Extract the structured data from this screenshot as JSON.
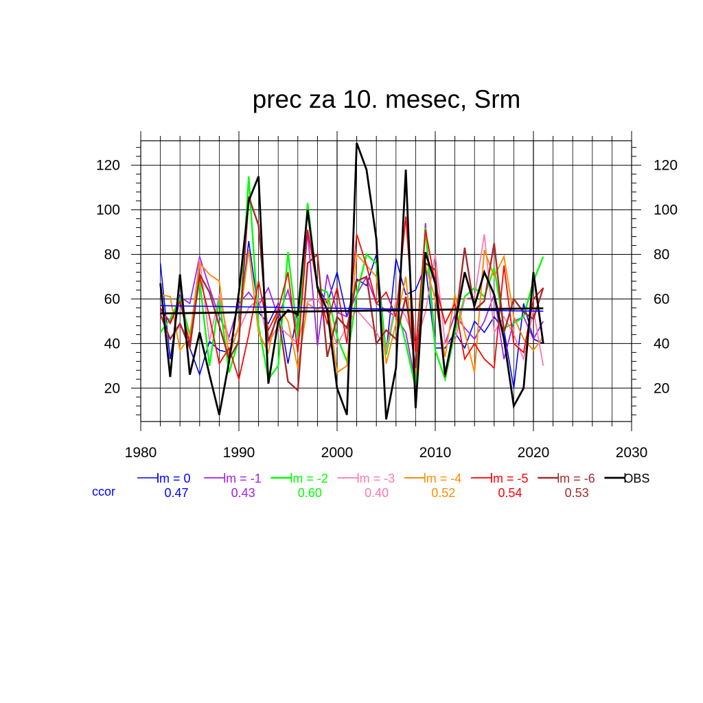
{
  "chart_data": {
    "type": "line",
    "title": "prec za 10. mesec, Srm",
    "xlabel": "",
    "ylabel": "",
    "xlim": [
      1980,
      2030
    ],
    "ylim": [
      5,
      131
    ],
    "grid": true,
    "x_ticks": [
      "1980",
      "1990",
      "2000",
      "2010",
      "2020",
      "2030"
    ],
    "y_ticks": [
      "20",
      "40",
      "60",
      "80",
      "100",
      "120"
    ],
    "legend_position": "bottom",
    "ccor_label": "ccor",
    "ccor_color": "#0000ff",
    "x": [
      1982,
      1983,
      1984,
      1985,
      1986,
      1987,
      1988,
      1989,
      1990,
      1991,
      1992,
      1993,
      1994,
      1995,
      1996,
      1997,
      1998,
      1999,
      2000,
      2001,
      2002,
      2003,
      2004,
      2005,
      2006,
      2007,
      2008,
      2009,
      2010,
      2011,
      2012,
      2013,
      2014,
      2015,
      2016,
      2017,
      2018,
      2019,
      2020,
      2021
    ],
    "series": [
      {
        "name": "lm = 0",
        "ccor": "0.47",
        "color": "#0000ff",
        "width": 1.6,
        "values": [
          76,
          33,
          62,
          38,
          26,
          41,
          37,
          36,
          47,
          86,
          54,
          49,
          58,
          31,
          55,
          91,
          66,
          58,
          72,
          52,
          69,
          66,
          80,
          36,
          78,
          62,
          64,
          75,
          38,
          38,
          45,
          38,
          50,
          45,
          52,
          46,
          20,
          58,
          42,
          40
        ],
        "trend": [
          57,
          54.5
        ]
      },
      {
        "name": "lm = -1",
        "ccor": "0.43",
        "color": "#a020f0",
        "width": 1.8,
        "values": [
          55,
          50,
          61,
          58,
          79,
          65,
          52,
          43,
          58,
          63,
          57,
          65,
          52,
          64,
          44,
          90,
          39,
          71,
          54,
          52,
          62,
          70,
          58,
          55,
          52,
          45,
          22,
          94,
          40,
          40,
          53,
          47,
          42,
          50,
          62,
          33,
          50,
          52,
          42,
          50
        ]
      },
      {
        "name": "lm = -2",
        "ccor": "0.60",
        "color": "#00ff00",
        "width": 2.4,
        "values": [
          45,
          51,
          60,
          44,
          68,
          30,
          60,
          27,
          42,
          115,
          48,
          24,
          30,
          81,
          43,
          103,
          65,
          63,
          43,
          32,
          62,
          80,
          76,
          35,
          58,
          40,
          20,
          92,
          37,
          24,
          45,
          61,
          65,
          61,
          74,
          47,
          49,
          52,
          68,
          79
        ]
      },
      {
        "name": "lm = -3",
        "ccor": "0.40",
        "color": "#ff77b0",
        "width": 1.8,
        "values": [
          53,
          42,
          48,
          42,
          78,
          41,
          62,
          41,
          46,
          56,
          60,
          40,
          48,
          44,
          40,
          59,
          60,
          53,
          39,
          48,
          55,
          50,
          45,
          37,
          59,
          52,
          40,
          54,
          80,
          40,
          41,
          60,
          61,
          89,
          45,
          52,
          44,
          33,
          55,
          30
        ]
      },
      {
        "name": "lm = -4",
        "ccor": "0.52",
        "color": "#ff8c00",
        "width": 2.0,
        "values": [
          62,
          61,
          37,
          43,
          76,
          71,
          68,
          34,
          48,
          82,
          45,
          36,
          57,
          50,
          29,
          58,
          55,
          60,
          27,
          30,
          80,
          75,
          70,
          31,
          49,
          70,
          26,
          75,
          60,
          34,
          62,
          45,
          27,
          82,
          70,
          79,
          52,
          42,
          37,
          43
        ]
      },
      {
        "name": "lm = -5",
        "ccor": "0.54",
        "color": "#ff0000",
        "width": 1.8,
        "values": [
          56,
          49,
          59,
          40,
          70,
          52,
          31,
          38,
          24,
          44,
          68,
          46,
          55,
          72,
          36,
          91,
          65,
          49,
          65,
          40,
          89,
          75,
          58,
          63,
          52,
          97,
          36,
          91,
          67,
          49,
          58,
          33,
          40,
          33,
          29,
          75,
          40,
          36,
          60,
          65
        ]
      },
      {
        "name": "lm = -6",
        "ccor": "0.53",
        "color": "#a52a2a",
        "width": 2.4,
        "values": [
          53,
          42,
          49,
          38,
          71,
          63,
          48,
          33,
          41,
          106,
          93,
          41,
          53,
          23,
          19,
          76,
          80,
          34,
          52,
          47,
          68,
          70,
          40,
          46,
          42,
          61,
          29,
          76,
          73,
          25,
          48,
          83,
          55,
          59,
          85,
          45,
          60,
          54,
          51,
          65
        ]
      },
      {
        "name": "OBS",
        "ccor": "",
        "color": "#000000",
        "width": 2.8,
        "values": [
          67,
          25,
          71,
          26,
          45,
          26,
          8,
          32,
          63,
          104,
          115,
          22,
          50,
          55,
          53,
          100,
          65,
          55,
          20,
          8,
          130,
          118,
          87,
          6,
          29,
          118,
          11,
          81,
          67,
          26,
          48,
          72,
          57,
          72,
          62,
          42,
          12,
          20,
          72,
          40
        ],
        "trend": [
          53.5,
          55.8
        ]
      }
    ]
  }
}
